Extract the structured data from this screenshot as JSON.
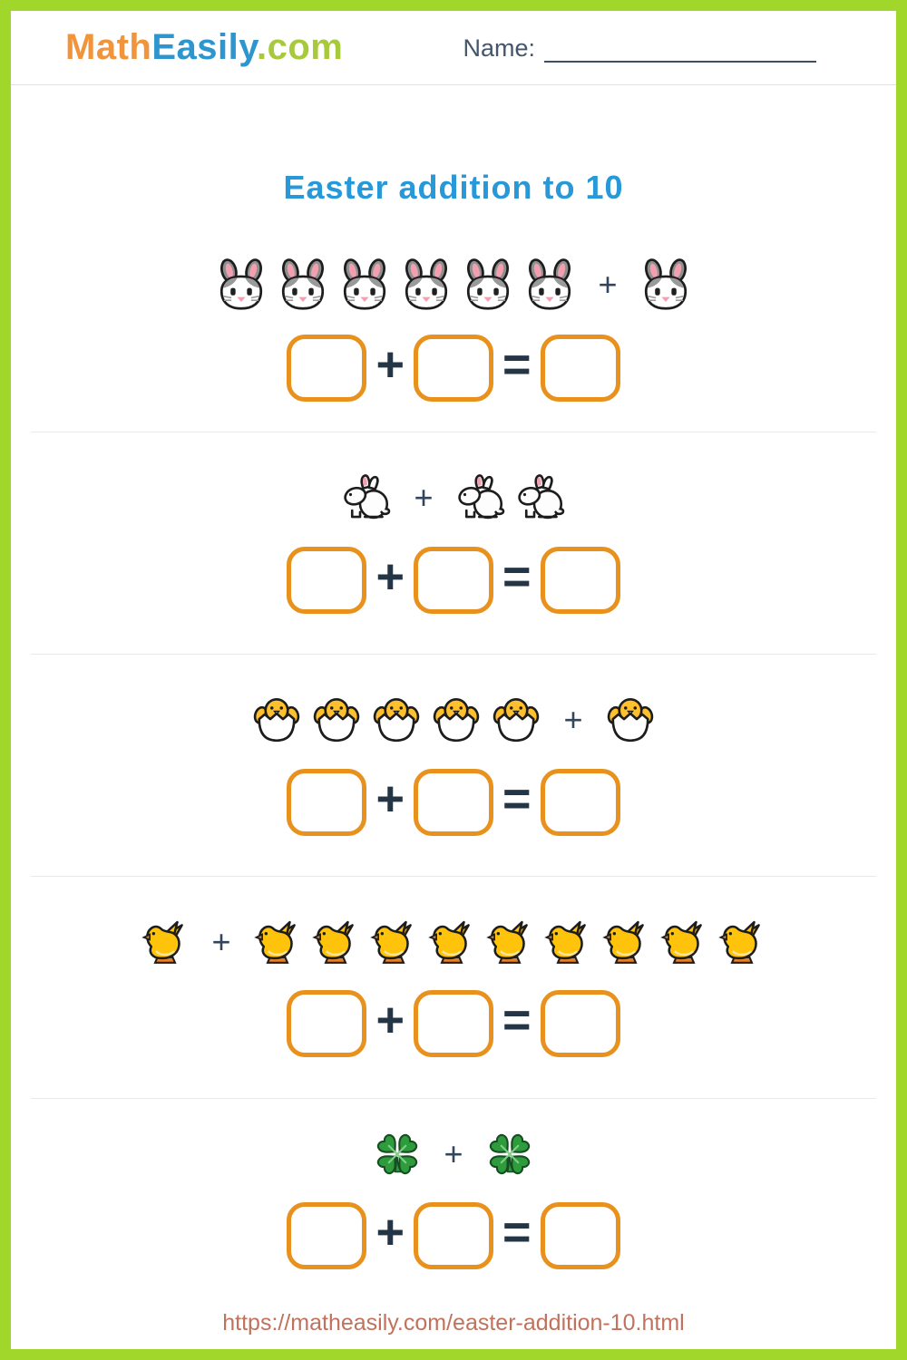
{
  "colors": {
    "border_green": "#A1D72B",
    "logo_orange": "#F0953B",
    "logo_blue": "#2E96CE",
    "logo_green": "#A8C93C",
    "title_blue": "#2798D8",
    "box_orange": "#E8911D",
    "operator_dark": "#243546",
    "footer_link": "#C1725C"
  },
  "header": {
    "logo_part1": "Math",
    "logo_part2": "Easily",
    "logo_part3": ".com",
    "name_label": "Name:",
    "name_value": ""
  },
  "title": "Easter addition to 10",
  "symbols": {
    "plus": "+",
    "equals": "="
  },
  "problems": [
    {
      "icon": "rabbit-face",
      "left_count": 6,
      "right_count": 1
    },
    {
      "icon": "rabbit",
      "left_count": 1,
      "right_count": 2
    },
    {
      "icon": "hatching-chick",
      "left_count": 5,
      "right_count": 1
    },
    {
      "icon": "baby-chick",
      "left_count": 1,
      "right_count": 9
    },
    {
      "icon": "clover",
      "left_count": 1,
      "right_count": 1
    }
  ],
  "footer": {
    "url": "https://matheasily.com/easter-addition-10.html"
  }
}
